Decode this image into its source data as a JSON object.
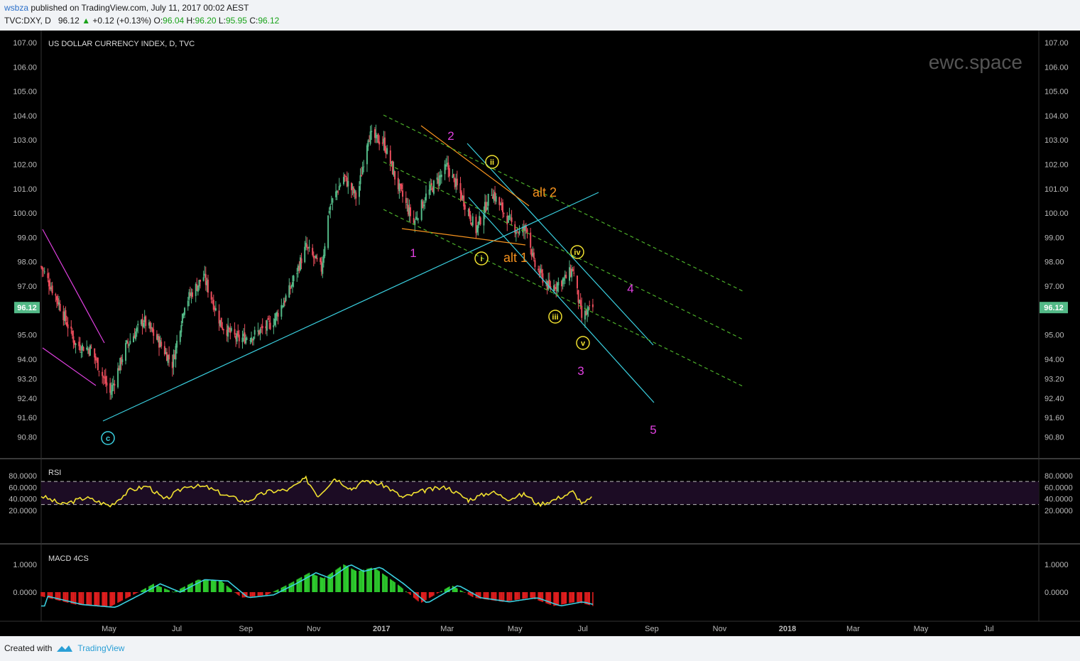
{
  "header": {
    "user": "wsbza",
    "published": "published on TradingView.com, July 11, 2017 00:02 AEST",
    "symbol": "TVC:DXY, D",
    "price": "96.12",
    "change": "+0.12 (+0.13%)",
    "o_label": "O:",
    "o_val": "96.04",
    "h_label": "H:",
    "h_val": "96.20",
    "l_label": "L:",
    "l_val": "95.95",
    "c_label": "C:",
    "c_val": "96.12"
  },
  "footer": {
    "created_with": "Created with",
    "brand": "TradingView"
  },
  "colors": {
    "background": "#000000",
    "up": "#53b987",
    "down": "#eb4d5c",
    "cyan": "#3ad0e0",
    "magenta": "#e040e0",
    "orange": "#f7931e",
    "yellow": "#f0e030",
    "green_dash": "#4caf2a"
  },
  "chart_data": [
    {
      "type": "candlestick",
      "title": "US DOLLAR CURRENCY INDEX, D, TVC",
      "watermark": "ewc.space",
      "last_price": "96.12",
      "y_ticks": [
        "107.00",
        "106.00",
        "105.00",
        "104.00",
        "103.00",
        "102.00",
        "101.00",
        "100.00",
        "99.00",
        "98.00",
        "97.00",
        "95.00",
        "94.00",
        "93.20",
        "92.40",
        "91.60",
        "90.80"
      ],
      "x_ticks": [
        "May",
        "Jul",
        "Sep",
        "Nov",
        "2017",
        "Mar",
        "May",
        "Jul",
        "Sep",
        "Nov",
        "2018",
        "Mar",
        "May",
        "Jul"
      ],
      "x_range": [
        "2016-03-01",
        "2018-08-15"
      ],
      "approx_closes": [
        [
          "2016-03-01",
          97.8
        ],
        [
          "2016-03-15",
          96.5
        ],
        [
          "2016-04-01",
          94.6
        ],
        [
          "2016-04-15",
          94.4
        ],
        [
          "2016-05-02",
          92.6
        ],
        [
          "2016-05-16",
          94.5
        ],
        [
          "2016-06-01",
          95.6
        ],
        [
          "2016-06-15",
          94.7
        ],
        [
          "2016-06-27",
          93.8
        ],
        [
          "2016-07-08",
          96.3
        ],
        [
          "2016-07-25",
          97.4
        ],
        [
          "2016-08-10",
          95.4
        ],
        [
          "2016-08-25",
          94.8
        ],
        [
          "2016-09-08",
          95.0
        ],
        [
          "2016-09-25",
          95.5
        ],
        [
          "2016-10-10",
          96.8
        ],
        [
          "2016-10-25",
          98.6
        ],
        [
          "2016-11-08",
          97.7
        ],
        [
          "2016-11-15",
          100.2
        ],
        [
          "2016-11-28",
          101.5
        ],
        [
          "2016-12-10",
          100.6
        ],
        [
          "2016-12-20",
          103.2
        ],
        [
          "2017-01-03",
          102.9
        ],
        [
          "2017-01-15",
          101.2
        ],
        [
          "2017-01-30",
          99.6
        ],
        [
          "2017-02-10",
          100.7
        ],
        [
          "2017-03-01",
          101.9
        ],
        [
          "2017-03-15",
          100.6
        ],
        [
          "2017-03-27",
          99.3
        ],
        [
          "2017-04-10",
          100.9
        ],
        [
          "2017-04-25",
          99.7
        ],
        [
          "2017-05-05",
          99.2
        ],
        [
          "2017-05-12",
          99.4
        ],
        [
          "2017-05-18",
          97.9
        ],
        [
          "2017-06-01",
          96.9
        ],
        [
          "2017-06-15",
          97.3
        ],
        [
          "2017-06-22",
          97.7
        ],
        [
          "2017-06-30",
          95.7
        ],
        [
          "2017-07-10",
          96.12
        ]
      ],
      "wave_labels": [
        "c",
        "1",
        "2",
        "3",
        "4",
        "5",
        "i",
        "ii",
        "iii",
        "iv",
        "v",
        "alt 1",
        "alt 2"
      ]
    },
    {
      "type": "line",
      "title": "RSI",
      "y_ticks": [
        "80.0000",
        "60.0000",
        "40.0000",
        "20.0000"
      ],
      "bands": [
        30,
        70
      ],
      "approx_values": [
        [
          "2016-03-01",
          45
        ],
        [
          "2016-03-20",
          30
        ],
        [
          "2016-04-10",
          42
        ],
        [
          "2016-05-02",
          28
        ],
        [
          "2016-05-20",
          55
        ],
        [
          "2016-06-05",
          62
        ],
        [
          "2016-06-20",
          38
        ],
        [
          "2016-07-10",
          63
        ],
        [
          "2016-07-28",
          60
        ],
        [
          "2016-08-15",
          45
        ],
        [
          "2016-09-01",
          35
        ],
        [
          "2016-09-20",
          52
        ],
        [
          "2016-10-10",
          56
        ],
        [
          "2016-10-25",
          75
        ],
        [
          "2016-11-05",
          45
        ],
        [
          "2016-11-20",
          76
        ],
        [
          "2016-12-05",
          57
        ],
        [
          "2016-12-18",
          72
        ],
        [
          "2017-01-05",
          62
        ],
        [
          "2017-01-20",
          42
        ],
        [
          "2017-02-10",
          55
        ],
        [
          "2017-03-01",
          60
        ],
        [
          "2017-03-20",
          38
        ],
        [
          "2017-04-10",
          52
        ],
        [
          "2017-04-25",
          40
        ],
        [
          "2017-05-10",
          48
        ],
        [
          "2017-05-22",
          30
        ],
        [
          "2017-06-05",
          38
        ],
        [
          "2017-06-22",
          52
        ],
        [
          "2017-07-01",
          31
        ],
        [
          "2017-07-10",
          42
        ]
      ]
    },
    {
      "type": "histogram",
      "title": "MACD 4CS",
      "y_ticks": [
        "1.0000",
        "0.0000"
      ],
      "approx_values": [
        [
          "2016-03-01",
          -0.15
        ],
        [
          "2016-04-01",
          -0.45
        ],
        [
          "2016-05-01",
          -0.55
        ],
        [
          "2016-05-25",
          -0.05
        ],
        [
          "2016-06-10",
          0.3
        ],
        [
          "2016-06-28",
          0.0
        ],
        [
          "2016-07-20",
          0.45
        ],
        [
          "2016-08-10",
          0.4
        ],
        [
          "2016-08-28",
          -0.2
        ],
        [
          "2016-09-20",
          -0.1
        ],
        [
          "2016-10-10",
          0.3
        ],
        [
          "2016-10-28",
          0.7
        ],
        [
          "2016-11-10",
          0.5
        ],
        [
          "2016-11-28",
          1.0
        ],
        [
          "2016-12-10",
          0.75
        ],
        [
          "2016-12-25",
          0.9
        ],
        [
          "2017-01-15",
          0.3
        ],
        [
          "2017-02-05",
          -0.4
        ],
        [
          "2017-03-05",
          0.25
        ],
        [
          "2017-03-25",
          -0.2
        ],
        [
          "2017-04-20",
          -0.35
        ],
        [
          "2017-05-15",
          -0.2
        ],
        [
          "2017-06-05",
          -0.5
        ],
        [
          "2017-06-25",
          -0.35
        ],
        [
          "2017-07-10",
          -0.5
        ]
      ]
    }
  ]
}
